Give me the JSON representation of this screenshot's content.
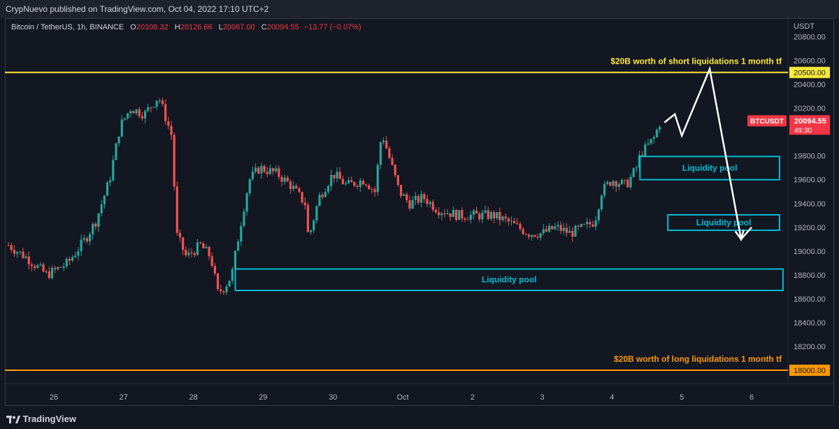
{
  "header": {
    "published": "CrypNuevo published on TradingView.com, Oct 04, 2022 17:10 UTC+2"
  },
  "legend": {
    "symbol": "Bitcoin / TetherUS, 1h, BINANCE",
    "o_label": "O",
    "o_val": "20108.32",
    "h_label": "H",
    "h_val": "20126.66",
    "l_label": "L",
    "l_val": "20067.00",
    "c_label": "C",
    "c_val": "20094.55",
    "change": "−13.77 (−0.07%)"
  },
  "footer": {
    "brand": "TradingView"
  },
  "colors": {
    "up": "#26a69a",
    "down": "#ef5350",
    "yellow": "#ffeb3b",
    "orange": "#ff9800",
    "cyan": "#00bcd4",
    "bg": "#131722"
  },
  "chart_data": {
    "type": "candlestick",
    "title": "Bitcoin / TetherUS, 1h, BINANCE",
    "y_unit": "USDT",
    "ylim": [
      17950,
      20900
    ],
    "y_ticks": [
      20800,
      20600,
      20400,
      20200,
      20000,
      19800,
      19600,
      19400,
      19200,
      19000,
      18800,
      18600,
      18400,
      18200
    ],
    "y_tick_labels": [
      "20800.00",
      "20600.00",
      "20400.00",
      "20200.00",
      "20000.00",
      "19800.00",
      "19600.00",
      "19400.00",
      "19200.00",
      "19000.00",
      "18800.00",
      "18600.00",
      "18400.00",
      "18200.00"
    ],
    "x_ticks": [
      {
        "t": 26,
        "label": "26"
      },
      {
        "t": 27,
        "label": "27"
      },
      {
        "t": 28,
        "label": "28"
      },
      {
        "t": 29,
        "label": "29"
      },
      {
        "t": 30,
        "label": "30"
      },
      {
        "t": 31,
        "label": "Oct"
      },
      {
        "t": 32,
        "label": "2"
      },
      {
        "t": 33,
        "label": "3"
      },
      {
        "t": 34,
        "label": "4"
      },
      {
        "t": 35,
        "label": "5"
      },
      {
        "t": 36,
        "label": "6"
      }
    ],
    "xlim": [
      25.35,
      36.55
    ],
    "path_points": [
      [
        25.35,
        19050
      ],
      [
        25.6,
        18950
      ],
      [
        25.9,
        18800
      ],
      [
        26.2,
        18900
      ],
      [
        26.45,
        19100
      ],
      [
        26.6,
        19250
      ],
      [
        26.8,
        19600
      ],
      [
        26.95,
        20050
      ],
      [
        27.1,
        20200
      ],
      [
        27.3,
        20150
      ],
      [
        27.5,
        20300
      ],
      [
        27.7,
        19950
      ],
      [
        27.75,
        19150
      ],
      [
        27.9,
        18950
      ],
      [
        28.1,
        19050
      ],
      [
        28.25,
        18950
      ],
      [
        28.35,
        18650
      ],
      [
        28.45,
        18700
      ],
      [
        28.55,
        18800
      ],
      [
        28.7,
        19300
      ],
      [
        28.8,
        19600
      ],
      [
        28.95,
        19700
      ],
      [
        29.2,
        19650
      ],
      [
        29.4,
        19550
      ],
      [
        29.6,
        19400
      ],
      [
        29.65,
        19100
      ],
      [
        29.8,
        19450
      ],
      [
        30.0,
        19650
      ],
      [
        30.2,
        19550
      ],
      [
        30.45,
        19600
      ],
      [
        30.6,
        19500
      ],
      [
        30.7,
        20000
      ],
      [
        30.85,
        19700
      ],
      [
        30.95,
        19500
      ],
      [
        31.1,
        19400
      ],
      [
        31.3,
        19450
      ],
      [
        31.5,
        19350
      ],
      [
        31.8,
        19300
      ],
      [
        32.1,
        19300
      ],
      [
        32.3,
        19300
      ],
      [
        32.5,
        19250
      ],
      [
        32.65,
        19200
      ],
      [
        32.8,
        19150
      ],
      [
        33.0,
        19150
      ],
      [
        33.2,
        19200
      ],
      [
        33.4,
        19150
      ],
      [
        33.6,
        19200
      ],
      [
        33.75,
        19250
      ],
      [
        33.85,
        19500
      ],
      [
        34.0,
        19600
      ],
      [
        34.2,
        19550
      ],
      [
        34.35,
        19700
      ],
      [
        34.4,
        19800
      ],
      [
        34.6,
        19950
      ],
      [
        34.7,
        20100
      ]
    ],
    "last_price": {
      "label": "BTCUSDT",
      "value": 20094.55,
      "text": "20094.55",
      "countdown": "49:30"
    },
    "levels": [
      {
        "name": "short-liquidations",
        "price": 20500,
        "text": "20500.00",
        "color": "#ffeb3b",
        "note": "$20B worth of short liquidations 1 month tf"
      },
      {
        "name": "long-liquidations",
        "price": 18000,
        "text": "18000.00",
        "color": "#ff9800",
        "note": "$20B worth of long liquidations 1 month tf"
      }
    ],
    "zones": [
      {
        "label": "Liquidity pool",
        "t0": 34.4,
        "t1": 36.4,
        "p_high": 19795,
        "p_low": 19600
      },
      {
        "label": "Liquidity pool",
        "t0": 34.8,
        "t1": 36.4,
        "p_high": 19305,
        "p_low": 19175
      },
      {
        "label": "Liquidity pool",
        "t0": 28.6,
        "t1": 36.45,
        "p_high": 18850,
        "p_low": 18670
      }
    ],
    "projection": [
      [
        34.75,
        20080
      ],
      [
        34.9,
        20150
      ],
      [
        35.0,
        19970
      ],
      [
        35.4,
        20530
      ],
      [
        35.85,
        19100
      ],
      [
        36.0,
        19200
      ]
    ]
  }
}
